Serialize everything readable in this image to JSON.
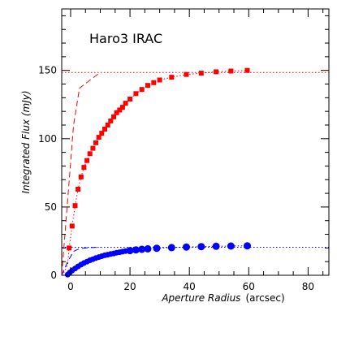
{
  "chart_data": {
    "type": "scatter",
    "title": "",
    "annotation": "Haro3  IRAC",
    "xlabel": "Aperture Radius",
    "xlabel_unit": "(arcsec)",
    "ylabel": "Integrated Flux (mJy)",
    "xlim": [
      -3,
      87
    ],
    "ylim": [
      0,
      195
    ],
    "xticks_major": [
      0,
      20,
      40,
      60,
      80
    ],
    "yticks_major": [
      0,
      50,
      100,
      150
    ],
    "xticks_minor_step": 5,
    "yticks_minor_step": 10,
    "grid": false,
    "legend": "none",
    "series": [
      {
        "marker": "square",
        "color": "#ff0000",
        "x": [
          -0.5,
          0.5,
          1.5,
          2.5,
          3.5,
          4.5,
          5.5,
          6.5,
          7.5,
          8.5,
          9.5,
          10.5,
          11.5,
          12.5,
          13.5,
          14.5,
          15.5,
          16.5,
          17.5,
          18.5,
          20,
          22,
          24,
          26,
          28,
          30,
          34,
          39,
          44,
          49,
          54,
          59.5
        ],
        "y": [
          20,
          36,
          51,
          63,
          72,
          79,
          84,
          89,
          93,
          97,
          101,
          104,
          107,
          110,
          113,
          116,
          119,
          121,
          123,
          126,
          129,
          133,
          136,
          139,
          141,
          143,
          145,
          147,
          148,
          149,
          149.5,
          150
        ]
      },
      {
        "marker": "circle",
        "color": "#0000ff",
        "x": [
          -1,
          -0.3,
          0.5,
          1.5,
          2.5,
          3.5,
          4.5,
          5.5,
          6.5,
          7.5,
          8.5,
          9.5,
          10.5,
          11.5,
          12.5,
          13.5,
          14.5,
          15.5,
          16.5,
          17.5,
          18.5,
          20,
          22,
          24,
          26,
          29,
          34,
          39,
          44,
          49,
          54,
          59.5
        ],
        "y": [
          0.5,
          2,
          3.5,
          5,
          6.5,
          7.8,
          9,
          10,
          11,
          11.8,
          12.6,
          13.3,
          14,
          14.6,
          15.1,
          15.6,
          16,
          16.5,
          16.9,
          17.3,
          17.7,
          18.1,
          18.6,
          19,
          19.4,
          19.8,
          20.3,
          20.7,
          21,
          21.2,
          21.4,
          21.6
        ]
      }
    ],
    "reference_lines": [
      {
        "style": "dotted",
        "color": "#ff0000",
        "y": 148.5
      },
      {
        "style": "dotted",
        "color": "#0000ff",
        "y": 20.5
      }
    ],
    "model_curves": [
      {
        "style": "dashed",
        "color": "#ff0000",
        "x": [
          -3,
          -1,
          1,
          3,
          6,
          10
        ],
        "y": [
          0,
          55,
          110,
          137,
          142,
          148.5
        ]
      },
      {
        "style": "dashed",
        "color": "#0000ff",
        "x": [
          -3,
          -1,
          1,
          3,
          6,
          10
        ],
        "y": [
          0,
          10,
          17.5,
          19.5,
          20.2,
          20.5
        ]
      },
      {
        "style": "dotted",
        "color": "#ff0000",
        "x": [
          -3,
          -2,
          -1,
          -0.5,
          0.5,
          1.5,
          2.5,
          3.5,
          4.5,
          5.5,
          6.5,
          7.5,
          8.5,
          9.5,
          10.5,
          11.5,
          12.5,
          13.5,
          14.5,
          15.5,
          16.5,
          17.5,
          18.5,
          20,
          22,
          24,
          26,
          28,
          30,
          34,
          39,
          44,
          49,
          54,
          59.5
        ],
        "y": [
          0,
          3,
          8,
          20,
          36,
          51,
          63,
          72,
          79,
          84,
          89,
          93,
          97,
          101,
          104,
          107,
          110,
          113,
          116,
          119,
          121,
          123,
          126,
          129,
          133,
          136,
          139,
          141,
          143,
          145,
          147,
          148,
          149,
          149.5,
          150
        ]
      },
      {
        "style": "dotted",
        "color": "#0000ff",
        "x": [
          -3,
          -2,
          -1,
          -0.3,
          0.5,
          1.5,
          2.5,
          3.5,
          4.5,
          5.5,
          6.5,
          7.5,
          8.5,
          9.5,
          10.5,
          11.5,
          12.5,
          13.5,
          14.5,
          15.5,
          16.5,
          17.5,
          18.5,
          20,
          22,
          24,
          26,
          29,
          34,
          39,
          44,
          49,
          54,
          59.5
        ],
        "y": [
          0,
          0.2,
          0.5,
          2,
          3.5,
          5,
          6.5,
          7.8,
          9,
          10,
          11,
          11.8,
          12.6,
          13.3,
          14,
          14.6,
          15.1,
          15.6,
          16,
          16.5,
          16.9,
          17.3,
          17.7,
          18.1,
          18.6,
          19,
          19.4,
          19.8,
          20.3,
          20.7,
          21,
          21.2,
          21.4,
          21.6
        ]
      }
    ]
  }
}
